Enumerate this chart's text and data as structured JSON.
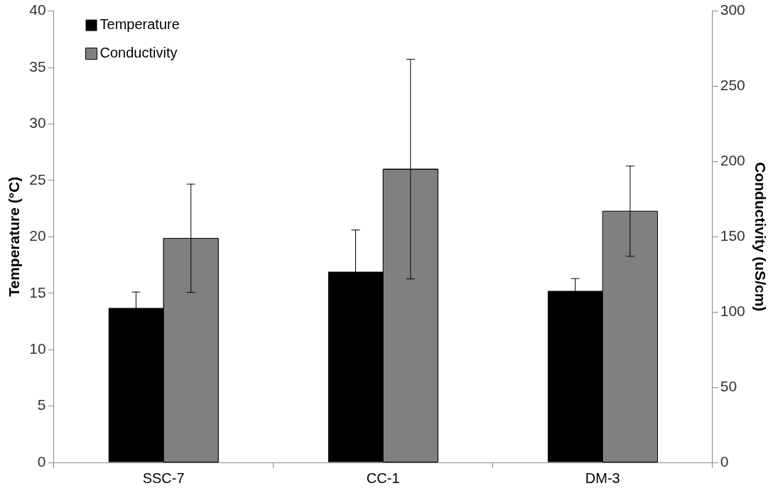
{
  "chart_data": {
    "type": "bar",
    "ylabel": "Temperature (°C)",
    "y2label": "Conductivity (uS/cm)",
    "categories": [
      "SSC-7",
      "CC-1",
      "DM-3"
    ],
    "series": [
      {
        "name": "Temperature",
        "color": "#000000",
        "values": [
          13.7,
          16.9,
          15.2
        ],
        "errors": [
          1.4,
          3.7,
          1.1
        ]
      },
      {
        "name": "Conductivity",
        "color": "#808080",
        "axis": "y2",
        "values": [
          149,
          195,
          167
        ],
        "errors": [
          36,
          73,
          30
        ]
      }
    ],
    "ylim": [
      0,
      40
    ],
    "yticks": [
      0,
      5,
      10,
      15,
      20,
      25,
      30,
      35,
      40
    ],
    "y2lim": [
      0,
      300
    ],
    "y2ticks": [
      0,
      50,
      100,
      150,
      200,
      250,
      300
    ],
    "grid": false,
    "legend": "top left"
  }
}
